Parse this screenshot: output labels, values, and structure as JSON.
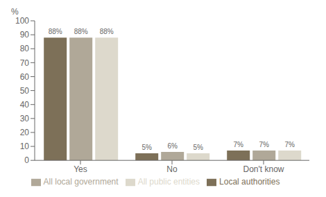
{
  "chart_data": {
    "type": "bar",
    "ylabel": "%",
    "categories": [
      "Yes",
      "No",
      "Don't know"
    ],
    "series": [
      {
        "name": "Local authorities",
        "color": "#7d7058",
        "values": [
          88,
          5,
          7
        ],
        "value_labels": [
          "88%",
          "5%",
          "7%"
        ]
      },
      {
        "name": "All local government",
        "color": "#b0a898",
        "values": [
          88,
          6,
          7
        ],
        "value_labels": [
          "88%",
          "6%",
          "7%"
        ]
      },
      {
        "name": "All public entities",
        "color": "#ddd9cc",
        "values": [
          88,
          5,
          7
        ],
        "value_labels": [
          "88%",
          "5%",
          "7%"
        ]
      }
    ],
    "ylim": [
      0,
      100
    ],
    "yticks": [
      0,
      10,
      20,
      30,
      40,
      50,
      60,
      70,
      80,
      90,
      100
    ],
    "grid": false,
    "legend": "bottom",
    "data_labels": true
  }
}
